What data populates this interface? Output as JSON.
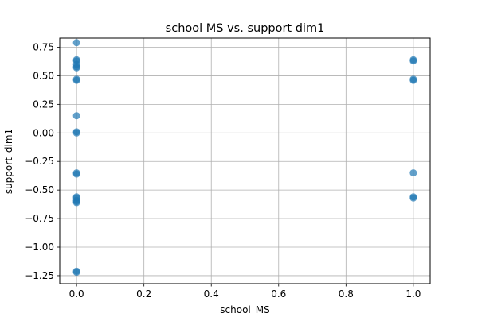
{
  "chart_data": {
    "type": "scatter",
    "title": "school MS vs. support dim1",
    "xlabel": "school_MS",
    "ylabel": "support_dim1",
    "xlim": [
      -0.05,
      1.05
    ],
    "ylim": [
      -1.32,
      0.83
    ],
    "x_ticks": [
      0.0,
      0.2,
      0.4,
      0.6,
      0.8,
      1.0
    ],
    "x_tick_labels": [
      "0.0",
      "0.2",
      "0.4",
      "0.6",
      "0.8",
      "1.0"
    ],
    "y_ticks": [
      -1.25,
      -1.0,
      -0.75,
      -0.5,
      -0.25,
      0.0,
      0.25,
      0.5,
      0.75
    ],
    "y_tick_labels": [
      "−1.25",
      "−1.00",
      "−0.75",
      "−0.50",
      "−0.25",
      "0.00",
      "0.25",
      "0.50",
      "0.75"
    ],
    "grid": true,
    "marker_color": "#1f77b4",
    "points": [
      {
        "x": 0.0,
        "y": 0.79
      },
      {
        "x": 0.0,
        "y": 0.64
      },
      {
        "x": 0.0,
        "y": 0.63
      },
      {
        "x": 0.0,
        "y": 0.6
      },
      {
        "x": 0.0,
        "y": 0.58
      },
      {
        "x": 0.0,
        "y": 0.57
      },
      {
        "x": 0.0,
        "y": 0.47
      },
      {
        "x": 0.0,
        "y": 0.46
      },
      {
        "x": 0.0,
        "y": 0.15
      },
      {
        "x": 0.0,
        "y": 0.01
      },
      {
        "x": 0.0,
        "y": 0.0
      },
      {
        "x": 0.0,
        "y": -0.35
      },
      {
        "x": 0.0,
        "y": -0.36
      },
      {
        "x": 0.0,
        "y": -0.56
      },
      {
        "x": 0.0,
        "y": -0.57
      },
      {
        "x": 0.0,
        "y": -0.59
      },
      {
        "x": 0.0,
        "y": -0.6
      },
      {
        "x": 0.0,
        "y": -0.61
      },
      {
        "x": 0.0,
        "y": -1.21
      },
      {
        "x": 0.0,
        "y": -1.22
      },
      {
        "x": 1.0,
        "y": 0.64
      },
      {
        "x": 1.0,
        "y": 0.63
      },
      {
        "x": 1.0,
        "y": 0.47
      },
      {
        "x": 1.0,
        "y": 0.46
      },
      {
        "x": 1.0,
        "y": -0.35
      },
      {
        "x": 1.0,
        "y": -0.56
      },
      {
        "x": 1.0,
        "y": -0.57
      }
    ]
  }
}
